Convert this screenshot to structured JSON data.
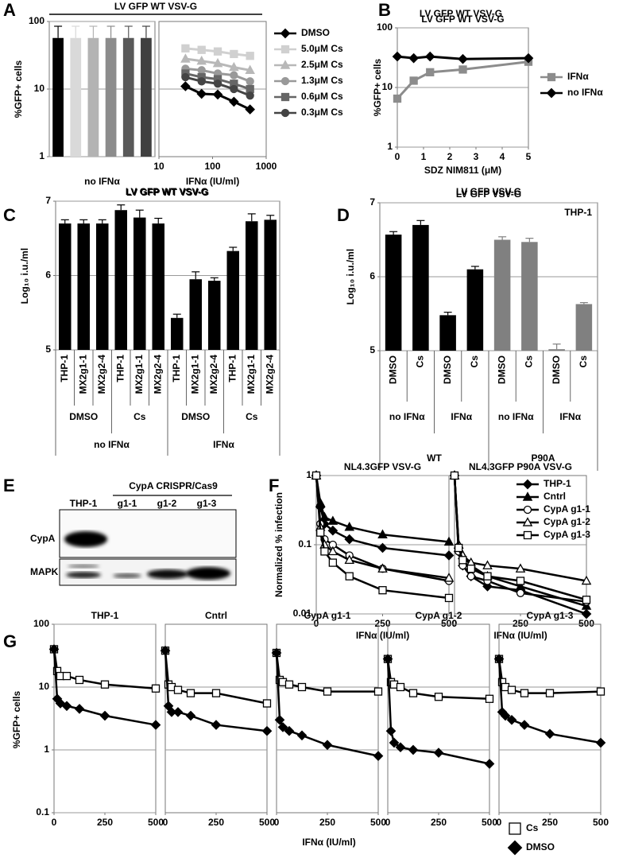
{
  "chart_data": [
    {
      "panel": "A",
      "title": "LV GFP WT VSV-G",
      "ylabel": "%GFP+ cells",
      "subplots": [
        {
          "type": "bar",
          "xlabel": "no IFNα",
          "values": [
            57,
            57,
            57,
            57,
            57,
            57
          ],
          "errors": [
            28,
            28,
            28,
            28,
            28,
            28
          ],
          "colors": [
            "#000000",
            "#d9d9d9",
            "#b3b3b3",
            "#8c8c8c",
            "#595959",
            "#404040"
          ],
          "ylog": true,
          "ylim": [
            1,
            100
          ],
          "yticks": [
            1,
            10,
            100
          ],
          "grid": true
        },
        {
          "type": "line",
          "xlabel": "IFNα (IU/ml)",
          "xlog": true,
          "xlim": [
            10,
            1000
          ],
          "xticks": [
            10,
            100,
            1000
          ],
          "ylog": true,
          "ylim": [
            1,
            100
          ],
          "hlines": [
            10
          ],
          "x": [
            31.25,
            62.5,
            125,
            250,
            500
          ],
          "series": [
            {
              "name": "DMSO",
              "color": "#000000",
              "marker": "diamond",
              "marker_fill": "#000000",
              "values": [
                11,
                8.5,
                8.3,
                6.5,
                5
              ]
            },
            {
              "name": "5.0μM Cs",
              "color": "#d0d0d0",
              "marker": "square",
              "marker_fill": "#d0d0d0",
              "values": [
                40,
                38,
                36,
                33,
                31
              ]
            },
            {
              "name": "2.5μM Cs",
              "color": "#b8b8b8",
              "marker": "triangle",
              "marker_fill": "#b8b8b8",
              "values": [
                28,
                26,
                24,
                21,
                19
              ]
            },
            {
              "name": "1.3μM Cs",
              "color": "#999999",
              "marker": "circle",
              "marker_fill": "#999999",
              "values": [
                20,
                19,
                17,
                16,
                13
              ]
            },
            {
              "name": "0.6μM Cs",
              "color": "#666666",
              "marker": "square",
              "marker_fill": "#666666",
              "values": [
                17,
                15,
                14,
                12,
                10
              ]
            },
            {
              "name": "0.3μM Cs",
              "color": "#444444",
              "marker": "circle",
              "marker_fill": "#444444",
              "values": [
                15,
                13,
                12,
                10,
                8
              ]
            }
          ]
        }
      ]
    },
    {
      "panel": "B",
      "type": "line",
      "title": "LV GFP WT VSV-G",
      "ylabel": "%GFP+ cells",
      "xlabel": "SDZ NIM811 (μM)",
      "x": [
        0,
        0.625,
        1.25,
        2.5,
        5
      ],
      "xlim": [
        0,
        5
      ],
      "xticks": [
        0,
        1,
        2,
        3,
        4,
        5
      ],
      "ylog": true,
      "ylim": [
        1,
        100
      ],
      "yticks": [
        1,
        10,
        100
      ],
      "grid": true,
      "series": [
        {
          "name": "IFNα",
          "color": "#8c8c8c",
          "marker": "square",
          "marker_fill": "#8c8c8c",
          "values": [
            6.5,
            13,
            18,
            20,
            27
          ]
        },
        {
          "name": "no IFNα",
          "color": "#000000",
          "marker": "diamond",
          "marker_fill": "#000000",
          "values": [
            33,
            31,
            33,
            30,
            31
          ]
        }
      ]
    },
    {
      "panel": "C",
      "type": "bar",
      "title": "LV GFP WT VSV-G",
      "ylabel": "Log₁₀ i.u./ml",
      "categories": [
        "THP-1",
        "MX2g1-1",
        "MX2g2-4",
        "THP-1",
        "MX2g1-1",
        "MX2g2-4",
        "THP-1",
        "MX2g1-1",
        "MX2g2-4",
        "THP-1",
        "MX2g1-1",
        "MX2g2-4"
      ],
      "groups": [
        [
          "DMSO",
          "Cs",
          "DMSO",
          "Cs"
        ],
        [
          "no IFNα",
          "IFNα"
        ]
      ],
      "values": [
        6.7,
        6.7,
        6.7,
        6.88,
        6.78,
        6.7,
        5.43,
        5.95,
        5.93,
        6.33,
        6.73,
        6.75
      ],
      "errors": [
        0.05,
        0.05,
        0.05,
        0.07,
        0.1,
        0.07,
        0.05,
        0.1,
        0.04,
        0.05,
        0.1,
        0.06
      ],
      "color": "#000000",
      "ylim": [
        5,
        7
      ],
      "yticks": [
        5,
        6,
        7
      ],
      "grid": true
    },
    {
      "panel": "D",
      "type": "bar",
      "title": "LV GFP VSV-G",
      "annotation": "THP-1",
      "ylabel": "Log₁₀ i.u./ml",
      "categories": [
        "DMSO",
        "Cs",
        "DMSO",
        "Cs",
        "DMSO",
        "Cs",
        "DMSO",
        "Cs"
      ],
      "groups": [
        [
          "no IFNα",
          "IFNα",
          "no IFNα",
          "IFNα"
        ],
        [
          "WT",
          "P90A"
        ]
      ],
      "values": [
        6.57,
        6.7,
        5.48,
        6.1,
        6.5,
        6.47,
        5.02,
        5.63
      ],
      "errors": [
        0.04,
        0.06,
        0.04,
        0.04,
        0.04,
        0.05,
        0.07,
        0.02
      ],
      "colors": [
        "#000000",
        "#000000",
        "#000000",
        "#000000",
        "#808080",
        "#808080",
        "#808080",
        "#808080"
      ],
      "ylim": [
        5,
        7
      ],
      "yticks": [
        5,
        6,
        7
      ],
      "grid": true
    },
    {
      "panel": "E",
      "type": "blot",
      "lanes": [
        "THP-1",
        "g1-1",
        "g1-2",
        "g1-3"
      ],
      "lane_group": "CypA CRISPR/Cas9",
      "rows": [
        "CypA",
        "MAPK"
      ]
    },
    {
      "panel": "F",
      "ylabel": "Normalized % infection",
      "subplots": [
        {
          "type": "line",
          "title": "NL4.3GFP VSV-G",
          "xlabel": "IFNα (IU/ml)",
          "x": [
            0,
            15.6,
            31.25,
            62.5,
            125,
            250,
            500
          ],
          "xlim": [
            0,
            500
          ],
          "xticks": [
            0,
            250,
            500
          ],
          "ylog": true,
          "ylim": [
            0.01,
            1
          ],
          "yticks": [
            0.01,
            0.1,
            1
          ],
          "grid": true,
          "series": [
            {
              "name": "THP-1",
              "color": "#000000",
              "marker": "diamond",
              "marker_fill": "#000000",
              "values": [
                1,
                0.35,
                0.2,
                0.16,
                0.12,
                0.09,
                0.07
              ]
            },
            {
              "name": "Cntrl",
              "color": "#000000",
              "marker": "triangle",
              "marker_fill": "#000000",
              "values": [
                1,
                0.4,
                0.25,
                0.22,
                0.18,
                0.14,
                0.11
              ]
            },
            {
              "name": "CypA g1-1",
              "color": "#000000",
              "marker": "circle",
              "marker_fill": "#ffffff",
              "values": [
                1,
                0.2,
                0.12,
                0.1,
                0.07,
                0.045,
                0.03
              ]
            },
            {
              "name": "CypA g1-2",
              "color": "#000000",
              "marker": "triangle",
              "marker_fill": "#ffffff",
              "values": [
                1,
                0.18,
                0.1,
                0.08,
                0.06,
                0.045,
                0.033
              ]
            },
            {
              "name": "CypA g1-3",
              "color": "#000000",
              "marker": "square",
              "marker_fill": "#ffffff",
              "values": [
                1,
                0.15,
                0.08,
                0.055,
                0.035,
                0.022,
                0.017
              ]
            }
          ]
        },
        {
          "type": "line",
          "title": "NL4.3GFP P90A VSV-G",
          "xlabel": "IFNα (IU/ml)",
          "x": [
            0,
            15.6,
            31.25,
            62.5,
            125,
            250,
            500
          ],
          "xlim": [
            0,
            500
          ],
          "xticks": [
            0,
            250,
            500
          ],
          "ylog": true,
          "ylim": [
            0.01,
            1
          ],
          "hlines": [
            0.1
          ],
          "series": [
            {
              "name": "THP-1",
              "color": "#000000",
              "marker": "diamond",
              "marker_fill": "#000000",
              "values": [
                1,
                0.08,
                0.05,
                0.035,
                0.025,
                0.022,
                0.01
              ]
            },
            {
              "name": "Cntrl",
              "color": "#000000",
              "marker": "triangle",
              "marker_fill": "#000000",
              "values": [
                1,
                0.1,
                0.07,
                0.05,
                0.035,
                0.025,
                0.013
              ]
            },
            {
              "name": "CypA g1-1",
              "color": "#000000",
              "marker": "circle",
              "marker_fill": "#ffffff",
              "values": [
                1,
                0.08,
                0.05,
                0.035,
                0.03,
                0.02,
                0.015
              ]
            },
            {
              "name": "CypA g1-2",
              "color": "#000000",
              "marker": "triangle",
              "marker_fill": "#ffffff",
              "values": [
                1,
                0.1,
                0.07,
                0.055,
                0.05,
                0.045,
                0.03
              ]
            },
            {
              "name": "CypA g1-3",
              "color": "#000000",
              "marker": "square",
              "marker_fill": "#ffffff",
              "values": [
                1,
                0.09,
                0.06,
                0.045,
                0.035,
                0.03,
                0.016
              ]
            }
          ]
        }
      ]
    },
    {
      "panel": "G",
      "ylabel": "%GFP+ cells",
      "xlabel": "IFNα (IU/ml)",
      "subplots": [
        {
          "type": "line",
          "title": "THP-1",
          "x": [
            0,
            15.6,
            31.25,
            62.5,
            125,
            250,
            500
          ],
          "xlim": [
            0,
            500
          ],
          "xticks": [
            0,
            250,
            500
          ],
          "ylog": true,
          "ylim": [
            0.1,
            100
          ],
          "yticks": [
            0.1,
            1,
            10,
            100
          ],
          "grid": true,
          "series": [
            {
              "name": "Cs",
              "color": "#000000",
              "marker": "square",
              "marker_fill": "#ffffff",
              "values": [
                40,
                18,
                15,
                15,
                13,
                11,
                9.5
              ]
            },
            {
              "name": "DMSO",
              "color": "#000000",
              "marker": "diamond",
              "marker_fill": "#000000",
              "values": [
                40,
                6.5,
                5.5,
                5,
                4.5,
                3.5,
                2.5
              ]
            }
          ]
        },
        {
          "type": "line",
          "title": "Cntrl",
          "x": [
            0,
            15.6,
            31.25,
            62.5,
            125,
            250,
            500
          ],
          "xlim": [
            0,
            500
          ],
          "xticks": [
            0,
            250,
            500
          ],
          "ylog": true,
          "ylim": [
            0.1,
            100
          ],
          "hlines": [
            1,
            10
          ],
          "series": [
            {
              "name": "Cs",
              "color": "#000000",
              "marker": "square",
              "marker_fill": "#ffffff",
              "values": [
                38,
                11,
                10,
                9,
                8,
                8,
                5.5
              ]
            },
            {
              "name": "DMSO",
              "color": "#000000",
              "marker": "diamond",
              "marker_fill": "#000000",
              "values": [
                38,
                5,
                4,
                4,
                3.5,
                2.5,
                2
              ]
            }
          ]
        },
        {
          "type": "line",
          "title": "CypA g1-1",
          "x": [
            0,
            15.6,
            31.25,
            62.5,
            125,
            250,
            500
          ],
          "xlim": [
            0,
            500
          ],
          "xticks": [
            0,
            250,
            500
          ],
          "ylog": true,
          "ylim": [
            0.1,
            100
          ],
          "hlines": [
            1,
            10
          ],
          "series": [
            {
              "name": "Cs",
              "color": "#000000",
              "marker": "square",
              "marker_fill": "#ffffff",
              "values": [
                35,
                13,
                12,
                11,
                10,
                8.5,
                8.5
              ]
            },
            {
              "name": "DMSO",
              "color": "#000000",
              "marker": "diamond",
              "marker_fill": "#000000",
              "values": [
                35,
                3,
                2.3,
                2,
                1.7,
                1.2,
                0.8
              ]
            }
          ]
        },
        {
          "type": "line",
          "title": "CypA g1-2",
          "x": [
            0,
            15.6,
            31.25,
            62.5,
            125,
            250,
            500
          ],
          "xlim": [
            0,
            500
          ],
          "xticks": [
            0,
            250,
            500
          ],
          "ylog": true,
          "ylim": [
            0.1,
            100
          ],
          "hlines": [
            1,
            10
          ],
          "series": [
            {
              "name": "Cs",
              "color": "#000000",
              "marker": "square",
              "marker_fill": "#ffffff",
              "values": [
                28,
                12,
                11,
                10,
                8,
                7,
                6.5
              ]
            },
            {
              "name": "DMSO",
              "color": "#000000",
              "marker": "diamond",
              "marker_fill": "#000000",
              "values": [
                28,
                2,
                1.3,
                1.1,
                1,
                0.9,
                0.6
              ]
            }
          ]
        },
        {
          "type": "line",
          "title": "CypA g1-3",
          "x": [
            0,
            15.6,
            31.25,
            62.5,
            125,
            250,
            500
          ],
          "xlim": [
            0,
            500
          ],
          "xticks": [
            0,
            250,
            500
          ],
          "ylog": true,
          "ylim": [
            0.1,
            100
          ],
          "hlines": [
            1,
            10
          ],
          "series": [
            {
              "name": "Cs",
              "color": "#000000",
              "marker": "square",
              "marker_fill": "#ffffff",
              "values": [
                28,
                12,
                10,
                9,
                8,
                8,
                8.5
              ]
            },
            {
              "name": "DMSO",
              "color": "#000000",
              "marker": "diamond",
              "marker_fill": "#000000",
              "values": [
                28,
                4,
                3.5,
                3,
                2.5,
                1.8,
                1.3
              ]
            }
          ]
        }
      ]
    }
  ]
}
